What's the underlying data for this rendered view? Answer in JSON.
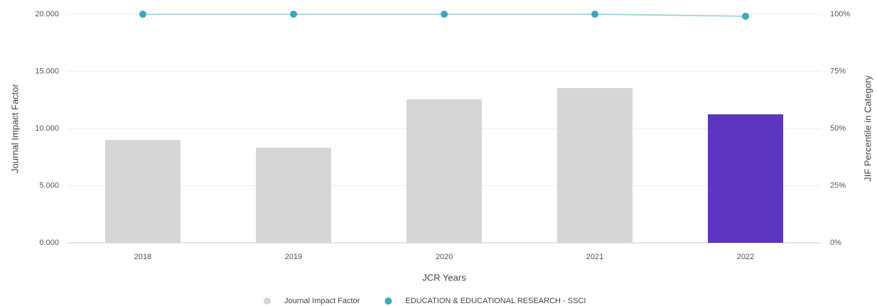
{
  "chart_data": {
    "type": "bar",
    "categories": [
      "2018",
      "2019",
      "2020",
      "2021",
      "2022"
    ],
    "series": [
      {
        "name": "Journal Impact Factor",
        "type": "bar",
        "color": "#d6d6d6",
        "colors": [
          "#d6d6d6",
          "#d6d6d6",
          "#d6d6d6",
          "#d6d6d6",
          "#5c35c0"
        ],
        "values": [
          9.0,
          8.32,
          12.55,
          13.54,
          11.24
        ]
      },
      {
        "name": "EDUCATION & EDUCATIONAL RESEARCH - SSCI",
        "type": "line",
        "axis": "y2",
        "color": "#3aa7bc",
        "values": [
          100,
          100,
          100,
          100,
          99.1
        ]
      }
    ],
    "xlabel": "JCR Years",
    "ylabel": "Journal Impact Factor",
    "y2label": "JIF Percentile in Category",
    "ylim": [
      0,
      20
    ],
    "yticks": [
      {
        "value": 0,
        "label": "0.000"
      },
      {
        "value": 5,
        "label": "5.000"
      },
      {
        "value": 10,
        "label": "10.000"
      },
      {
        "value": 15,
        "label": "15.000"
      },
      {
        "value": 20,
        "label": "20.000"
      }
    ],
    "y2lim": [
      0,
      100
    ],
    "y2ticks": [
      {
        "value": 0,
        "label": "0%"
      },
      {
        "value": 25,
        "label": "25%"
      },
      {
        "value": 50,
        "label": "50%"
      },
      {
        "value": 75,
        "label": "75%"
      },
      {
        "value": 100,
        "label": "100%"
      }
    ],
    "grid": true,
    "legend": "bottom"
  }
}
